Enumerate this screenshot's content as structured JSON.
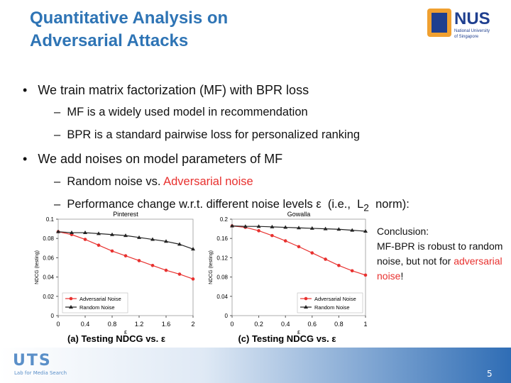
{
  "title": [
    "Quantitative Analysis on",
    "Adversarial Attacks"
  ],
  "logo": {
    "name": "NUS",
    "subtitle": [
      "National University",
      "of Singapore"
    ]
  },
  "bullets": [
    {
      "text": "We train matrix factorization (MF) with BPR loss",
      "sub": [
        "MF is a  widely used model in recommendation",
        "BPR is a standard pairwise loss for personalized ranking"
      ]
    },
    {
      "text": "We add noises on model parameters of MF",
      "sub": [
        [
          "Random noise vs. ",
          "Adversarial noise"
        ],
        [
          "Performance change w.r.t. different noise levels ε  (i.e.,  L",
          "2",
          "  norm):"
        ]
      ]
    }
  ],
  "conclusion": {
    "heading": "Conclusion:",
    "body": "MF-BPR is robust to random noise, but not for ",
    "highlight": "adversarial noise",
    "end": "!"
  },
  "footer": {
    "logo": "UTS",
    "lab": "Lab for Media Search",
    "page": "5"
  },
  "chart_data": [
    {
      "type": "line",
      "title": "Pinterest",
      "caption": "(a) Testing NDCG vs. ε",
      "xlabel": "ε",
      "ylabel": "NDCG (testing)",
      "x": [
        0,
        0.2,
        0.4,
        0.6,
        0.8,
        1.0,
        1.2,
        1.4,
        1.6,
        1.8,
        2.0
      ],
      "xlim": [
        0,
        2
      ],
      "xticks": [
        0,
        0.4,
        0.8,
        1.2,
        1.6,
        2
      ],
      "ylim": [
        0,
        0.1
      ],
      "yticks": [
        0,
        0.02,
        0.04,
        0.06,
        0.08,
        0.1
      ],
      "legend": "lower left",
      "series": [
        {
          "name": "Adversarial Noise",
          "color": "#e8312f",
          "marker": "circle",
          "values": [
            0.087,
            0.084,
            0.079,
            0.073,
            0.067,
            0.062,
            0.057,
            0.052,
            0.047,
            0.043,
            0.038
          ]
        },
        {
          "name": "Random Noise",
          "color": "#222222",
          "marker": "triangle",
          "values": [
            0.087,
            0.086,
            0.086,
            0.085,
            0.084,
            0.083,
            0.081,
            0.079,
            0.077,
            0.074,
            0.069
          ]
        }
      ]
    },
    {
      "type": "line",
      "title": "Gowalla",
      "caption": "(c) Testing NDCG vs. ε",
      "xlabel": "ε",
      "ylabel": "NDCG (testing)",
      "x": [
        0,
        0.1,
        0.2,
        0.3,
        0.4,
        0.5,
        0.6,
        0.7,
        0.8,
        0.9,
        1.0
      ],
      "xlim": [
        0,
        1
      ],
      "xticks": [
        0,
        0.2,
        0.4,
        0.6,
        0.8,
        1
      ],
      "ylim": [
        0,
        0.2
      ],
      "yticks": [
        0,
        0.04,
        0.08,
        0.12,
        0.16,
        0.2
      ],
      "legend": "lower right",
      "series": [
        {
          "name": "Adversarial Noise",
          "color": "#e8312f",
          "marker": "circle",
          "values": [
            0.186,
            0.183,
            0.176,
            0.166,
            0.155,
            0.143,
            0.13,
            0.117,
            0.104,
            0.093,
            0.084
          ]
        },
        {
          "name": "Random Noise",
          "color": "#222222",
          "marker": "triangle",
          "values": [
            0.186,
            0.185,
            0.185,
            0.184,
            0.183,
            0.182,
            0.181,
            0.18,
            0.179,
            0.177,
            0.175
          ]
        }
      ]
    }
  ]
}
